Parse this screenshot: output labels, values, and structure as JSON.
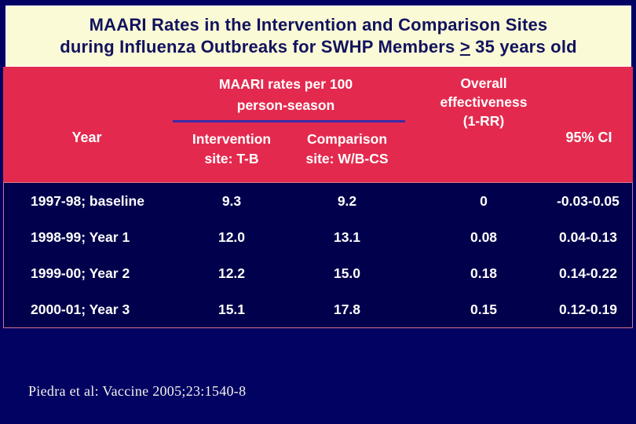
{
  "title": {
    "line1": "MAARI Rates in the Intervention and Comparison Sites",
    "line2_prefix": "during Influenza Outbreaks for SWHP Members ",
    "line2_gte_symbol": ">",
    "line2_suffix": " 35 years old"
  },
  "table": {
    "group_header": {
      "line1": "MAARI rates per 100",
      "line2": "person-season"
    },
    "overall_header": {
      "line1": "Overall",
      "line2": "effectiveness",
      "line3": "(1-RR)"
    },
    "columns": {
      "year": "Year",
      "intervention_line1": "Intervention",
      "intervention_line2": "site: T-B",
      "comparison_line1": "Comparison",
      "comparison_line2": "site: W/B-CS",
      "ci": "95% CI"
    },
    "rows": [
      {
        "year": "1997-98; baseline",
        "intervention": "9.3",
        "comparison": "9.2",
        "effectiveness": "0",
        "ci": "-0.03-0.05"
      },
      {
        "year": "1998-99; Year 1",
        "intervention": "12.0",
        "comparison": "13.1",
        "effectiveness": "0.08",
        "ci": "0.04-0.13"
      },
      {
        "year": "1999-00; Year 2",
        "intervention": "12.2",
        "comparison": "15.0",
        "effectiveness": "0.18",
        "ci": "0.14-0.22"
      },
      {
        "year": "2000-01; Year 3",
        "intervention": "15.1",
        "comparison": "17.8",
        "effectiveness": "0.15",
        "ci": "0.12-0.19"
      }
    ]
  },
  "citation": "Piedra et al: Vaccine 2005;23:1540-8",
  "colors": {
    "slide_background": "#020263",
    "title_background": "#FAFAD6",
    "title_text": "#12125E",
    "header_background": "#E32A4E",
    "body_background": "#00004C",
    "body_border_pink": "#D4758B",
    "group_rule_indigo": "#3A2BA8",
    "table_text": "#FFFFFF",
    "citation_text": "#F2F2EA"
  }
}
